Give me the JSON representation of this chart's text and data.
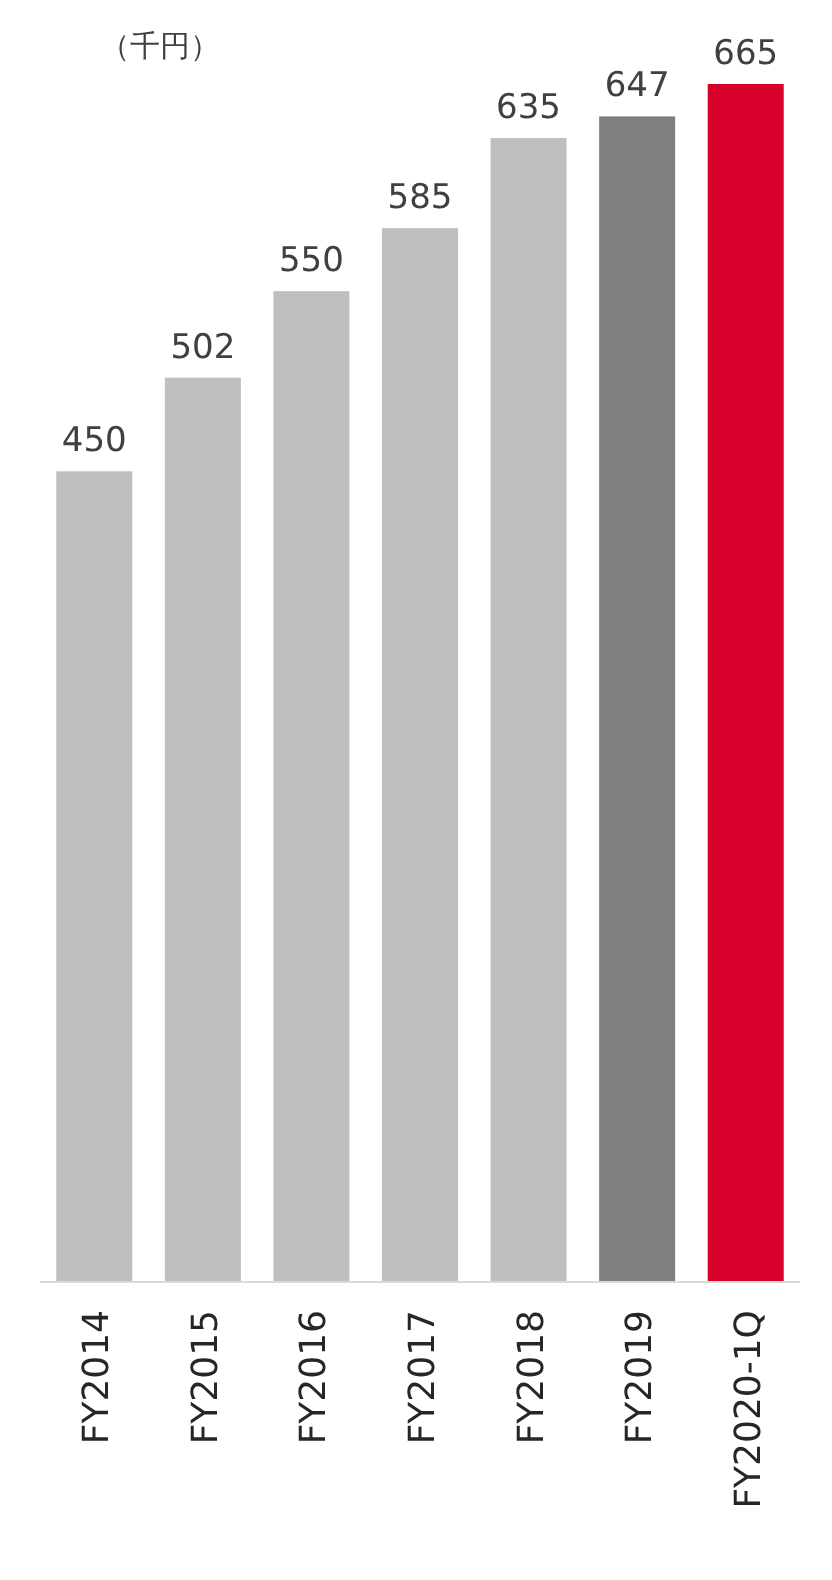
{
  "chart_data": {
    "type": "bar",
    "ylabel": "（千円）",
    "categories": [
      "FY2014",
      "FY2015",
      "FY2016",
      "FY2017",
      "FY2018",
      "FY2019",
      "FY2020-1Q"
    ],
    "values": [
      450,
      502,
      550,
      585,
      635,
      647,
      665
    ],
    "colors": [
      "#bfbfbf",
      "#bfbfbf",
      "#bfbfbf",
      "#bfbfbf",
      "#bfbfbf",
      "#7f7f7f",
      "#d7002a"
    ],
    "data_labels": true
  }
}
